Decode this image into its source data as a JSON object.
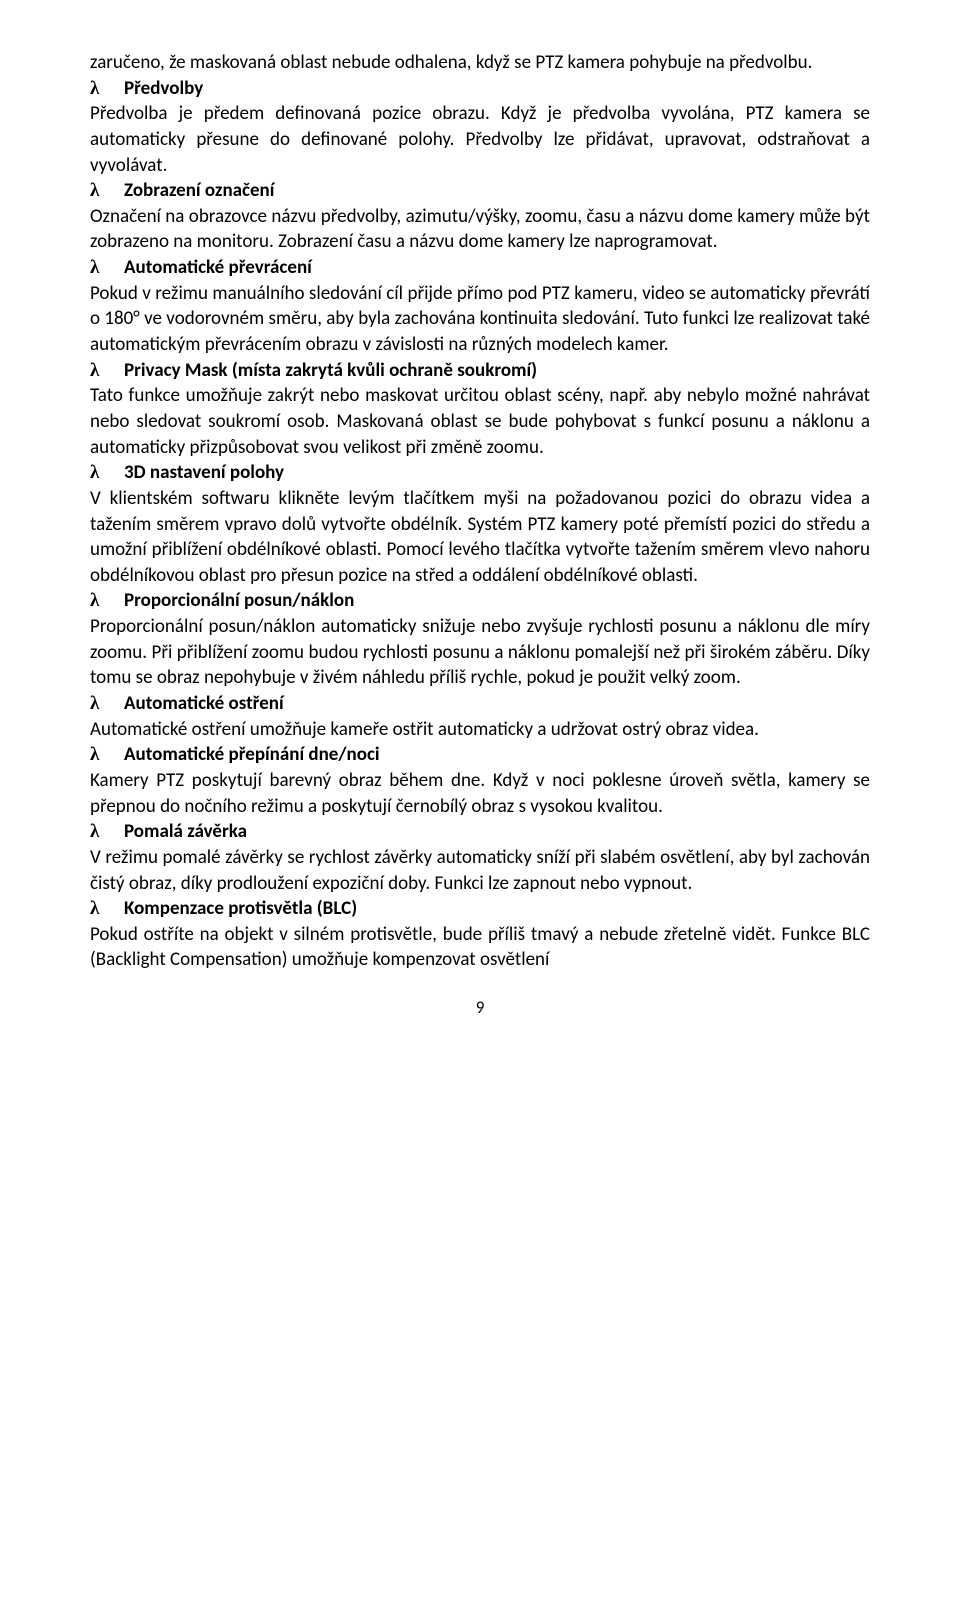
{
  "doc": {
    "p0": "zaručeno, že maskovaná oblast nebude odhalena, když se PTZ kamera pohybuje na předvolbu.",
    "h1_lambda": "λ",
    "h1_text": "Předvolby",
    "p1": "Předvolba je předem definovaná pozice obrazu. Když je předvolba vyvolána, PTZ kamera se automaticky přesune do definované polohy. Předvolby lze přidávat, upravovat, odstraňovat a vyvolávat.",
    "h2_lambda": "λ",
    "h2_text": "Zobrazení označení",
    "p2": "Označení na obrazovce názvu předvolby, azimutu/výšky, zoomu, času a názvu dome kamery může být zobrazeno na monitoru. Zobrazení času a názvu dome kamery lze naprogramovat.",
    "h3_lambda": "λ",
    "h3_text": "Automatické převrácení",
    "p3": "Pokud v režimu manuálního sledování cíl přijde přímo pod PTZ kameru, video se automaticky převrátí o 180° ve vodorovném směru, aby byla zachována kontinuita sledování. Tuto funkci lze realizovat také automatickým převrácením obrazu v závislosti na různých modelech kamer.",
    "h4_lambda": "λ",
    "h4_text": "Privacy Mask (místa zakrytá kvůli ochraně soukromí)",
    "p4": "Tato funkce umožňuje zakrýt nebo maskovat určitou oblast scény, např. aby nebylo možné nahrávat nebo sledovat soukromí osob. Maskovaná oblast se bude pohybovat s funkcí posunu a náklonu a automaticky přizpůsobovat svou velikost při změně zoomu.",
    "h5_lambda": "λ",
    "h5_text": "3D nastavení polohy",
    "p5": "V klientském softwaru klikněte levým tlačítkem myši na požadovanou pozici do obrazu videa a tažením směrem vpravo dolů vytvořte obdélník. Systém PTZ kamery poté přemístí pozici do středu a umožní přiblížení obdélníkové oblasti. Pomocí levého tlačítka vytvořte tažením směrem vlevo nahoru obdélníkovou oblast pro přesun pozice na střed a oddálení obdélníkové oblasti.",
    "h6_lambda": "λ",
    "h6_text": "Proporcionální posun/náklon",
    "p6": "Proporcionální posun/náklon automaticky snižuje nebo zvyšuje rychlosti posunu a náklonu dle míry zoomu. Při přiblížení zoomu budou rychlosti posunu a náklonu pomalejší než při širokém záběru. Díky tomu se obraz nepohybuje v živém náhledu příliš rychle, pokud je použit velký zoom.",
    "h7_lambda": "λ",
    "h7_text": "Automatické ostření",
    "p7": "Automatické ostření umožňuje kameře ostřit automaticky a udržovat ostrý obraz videa.",
    "h8_lambda": "λ",
    "h8_text": "Automatické přepínání dne/noci",
    "p8": "Kamery PTZ poskytují barevný obraz během dne. Když v noci poklesne úroveň světla, kamery se přepnou do nočního režimu a poskytují černobílý obraz s vysokou kvalitou.",
    "h9_lambda": "λ",
    "h9_text": "Pomalá závěrka",
    "p9": "V režimu pomalé závěrky se rychlost závěrky automaticky sníží při slabém osvětlení, aby byl zachován čistý obraz, díky prodloužení expoziční doby. Funkci lze zapnout nebo vypnout.",
    "h10_lambda": "λ",
    "h10_text": "Kompenzace protisvětla (BLC)",
    "p10": "Pokud ostříte na objekt v silném protisvětle, bude příliš tmavý a nebude zřetelně vidět. Funkce BLC (Backlight Compensation) umožňuje kompenzovat osvětlení",
    "page_number": "9"
  }
}
